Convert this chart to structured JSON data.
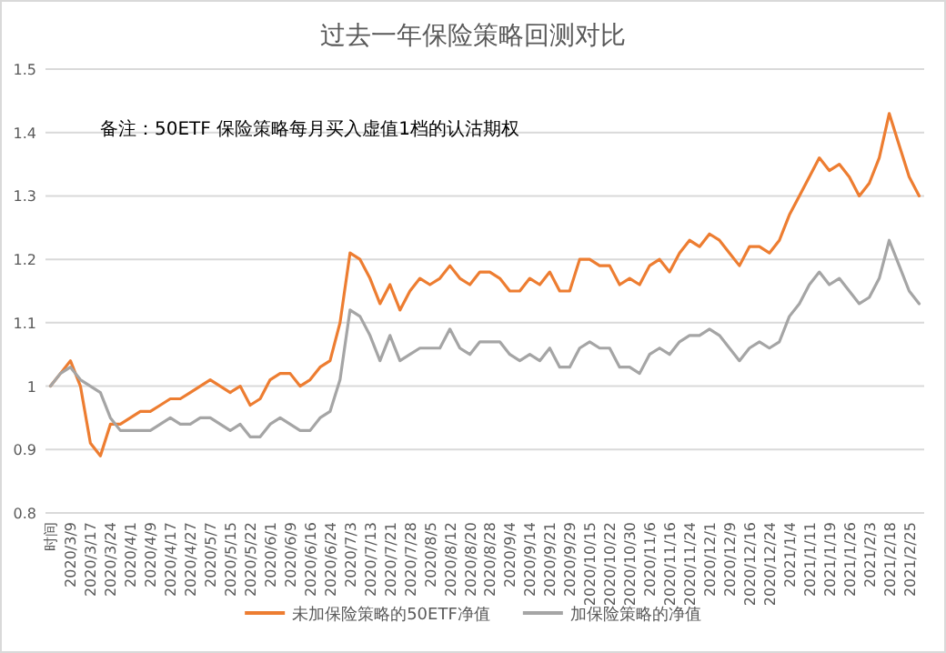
{
  "chart_data": {
    "type": "line",
    "title": "过去一年保险策略回测对比",
    "annotations": [
      "备注：50ETF 保险策略每月买入虚值1档的认沽期权"
    ],
    "categories": [
      "时间",
      null,
      "2020/3/9",
      null,
      "2020/3/17",
      null,
      "2020/3/24",
      null,
      "2020/4/1",
      null,
      "2020/4/9",
      null,
      "2020/4/17",
      null,
      "2020/4/27",
      null,
      "2020/5/7",
      null,
      "2020/5/15",
      null,
      "2020/5/22",
      null,
      "2020/6/1",
      null,
      "2020/6/9",
      null,
      "2020/6/16",
      null,
      "2020/6/24",
      null,
      "2020/7/3",
      null,
      "2020/7/13",
      null,
      "2020/7/21",
      null,
      "2020/7/28",
      null,
      "2020/8/5",
      null,
      "2020/8/12",
      null,
      "2020/8/20",
      null,
      "2020/8/28",
      null,
      "2020/9/4",
      null,
      "2020/9/14",
      null,
      "2020/9/21",
      null,
      "2020/9/29",
      null,
      "2020/10/15",
      null,
      "2020/10/22",
      null,
      "2020/10/30",
      null,
      "2020/11/6",
      null,
      "2020/11/16",
      null,
      "2020/11/24",
      null,
      "2020/12/1",
      null,
      "2020/12/9",
      null,
      "2020/12/16",
      null,
      "2020/12/24",
      null,
      "2021/1/4",
      null,
      "2021/1/11",
      null,
      "2021/1/19",
      null,
      "2021/1/26",
      null,
      "2021/2/3",
      null,
      "2021/2/18",
      null,
      "2021/2/25",
      null
    ],
    "series": [
      {
        "name": "未加保险策略的50ETF净值",
        "color": "#ed7d31",
        "values": [
          1.0,
          1.02,
          1.04,
          1.0,
          0.91,
          0.89,
          0.94,
          0.94,
          0.95,
          0.96,
          0.96,
          0.97,
          0.98,
          0.98,
          0.99,
          1.0,
          1.01,
          1.0,
          0.99,
          1.0,
          0.97,
          0.98,
          1.01,
          1.02,
          1.02,
          1.0,
          1.01,
          1.03,
          1.04,
          1.1,
          1.21,
          1.2,
          1.17,
          1.13,
          1.16,
          1.12,
          1.15,
          1.17,
          1.16,
          1.17,
          1.19,
          1.17,
          1.16,
          1.18,
          1.18,
          1.17,
          1.15,
          1.15,
          1.17,
          1.16,
          1.18,
          1.15,
          1.15,
          1.2,
          1.2,
          1.19,
          1.19,
          1.16,
          1.17,
          1.16,
          1.19,
          1.2,
          1.18,
          1.21,
          1.23,
          1.22,
          1.24,
          1.23,
          1.21,
          1.19,
          1.22,
          1.22,
          1.21,
          1.23,
          1.27,
          1.3,
          1.33,
          1.36,
          1.34,
          1.35,
          1.33,
          1.3,
          1.32,
          1.36,
          1.43,
          1.38,
          1.33,
          1.3
        ]
      },
      {
        "name": "加保险策略的净值",
        "color": "#a5a5a5",
        "values": [
          1.0,
          1.02,
          1.03,
          1.01,
          1.0,
          0.99,
          0.95,
          0.93,
          0.93,
          0.93,
          0.93,
          0.94,
          0.95,
          0.94,
          0.94,
          0.95,
          0.95,
          0.94,
          0.93,
          0.94,
          0.92,
          0.92,
          0.94,
          0.95,
          0.94,
          0.93,
          0.93,
          0.95,
          0.96,
          1.01,
          1.12,
          1.11,
          1.08,
          1.04,
          1.08,
          1.04,
          1.05,
          1.06,
          1.06,
          1.06,
          1.09,
          1.06,
          1.05,
          1.07,
          1.07,
          1.07,
          1.05,
          1.04,
          1.05,
          1.04,
          1.06,
          1.03,
          1.03,
          1.06,
          1.07,
          1.06,
          1.06,
          1.03,
          1.03,
          1.02,
          1.05,
          1.06,
          1.05,
          1.07,
          1.08,
          1.08,
          1.09,
          1.08,
          1.06,
          1.04,
          1.06,
          1.07,
          1.06,
          1.07,
          1.11,
          1.13,
          1.16,
          1.18,
          1.16,
          1.17,
          1.15,
          1.13,
          1.14,
          1.17,
          1.23,
          1.19,
          1.15,
          1.13
        ]
      }
    ],
    "ylim": [
      0.8,
      1.5
    ],
    "yticks": [
      0.8,
      0.9,
      1,
      1.1,
      1.2,
      1.3,
      1.4,
      1.5
    ],
    "grid": "y",
    "legend": "bottom",
    "marker": "none",
    "line_style": "solid"
  }
}
